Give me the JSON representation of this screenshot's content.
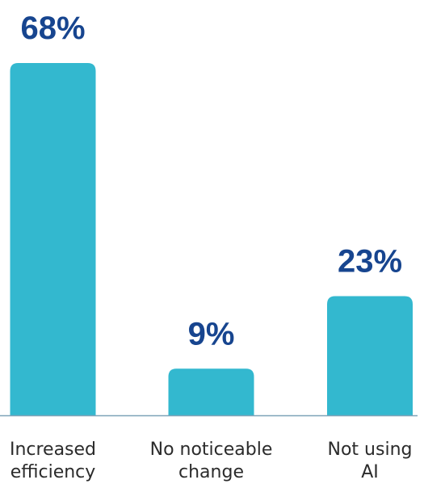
{
  "chart_data": {
    "type": "bar",
    "title": "",
    "xlabel": "",
    "ylabel": "",
    "categories": [
      [
        "Increased",
        "efficiency"
      ],
      [
        "No noticeable",
        "change"
      ],
      [
        "Not using",
        "AI"
      ]
    ],
    "values": [
      68,
      9,
      23
    ],
    "value_labels": [
      "68%",
      "9%",
      "23%"
    ],
    "ylim": [
      0,
      68
    ],
    "grid": false,
    "legend": "none",
    "colors": {
      "bar": "#33b8cf",
      "value_label": "#17458f",
      "category_label": "#2b2b2b",
      "axis": "#7fa3b8"
    }
  }
}
